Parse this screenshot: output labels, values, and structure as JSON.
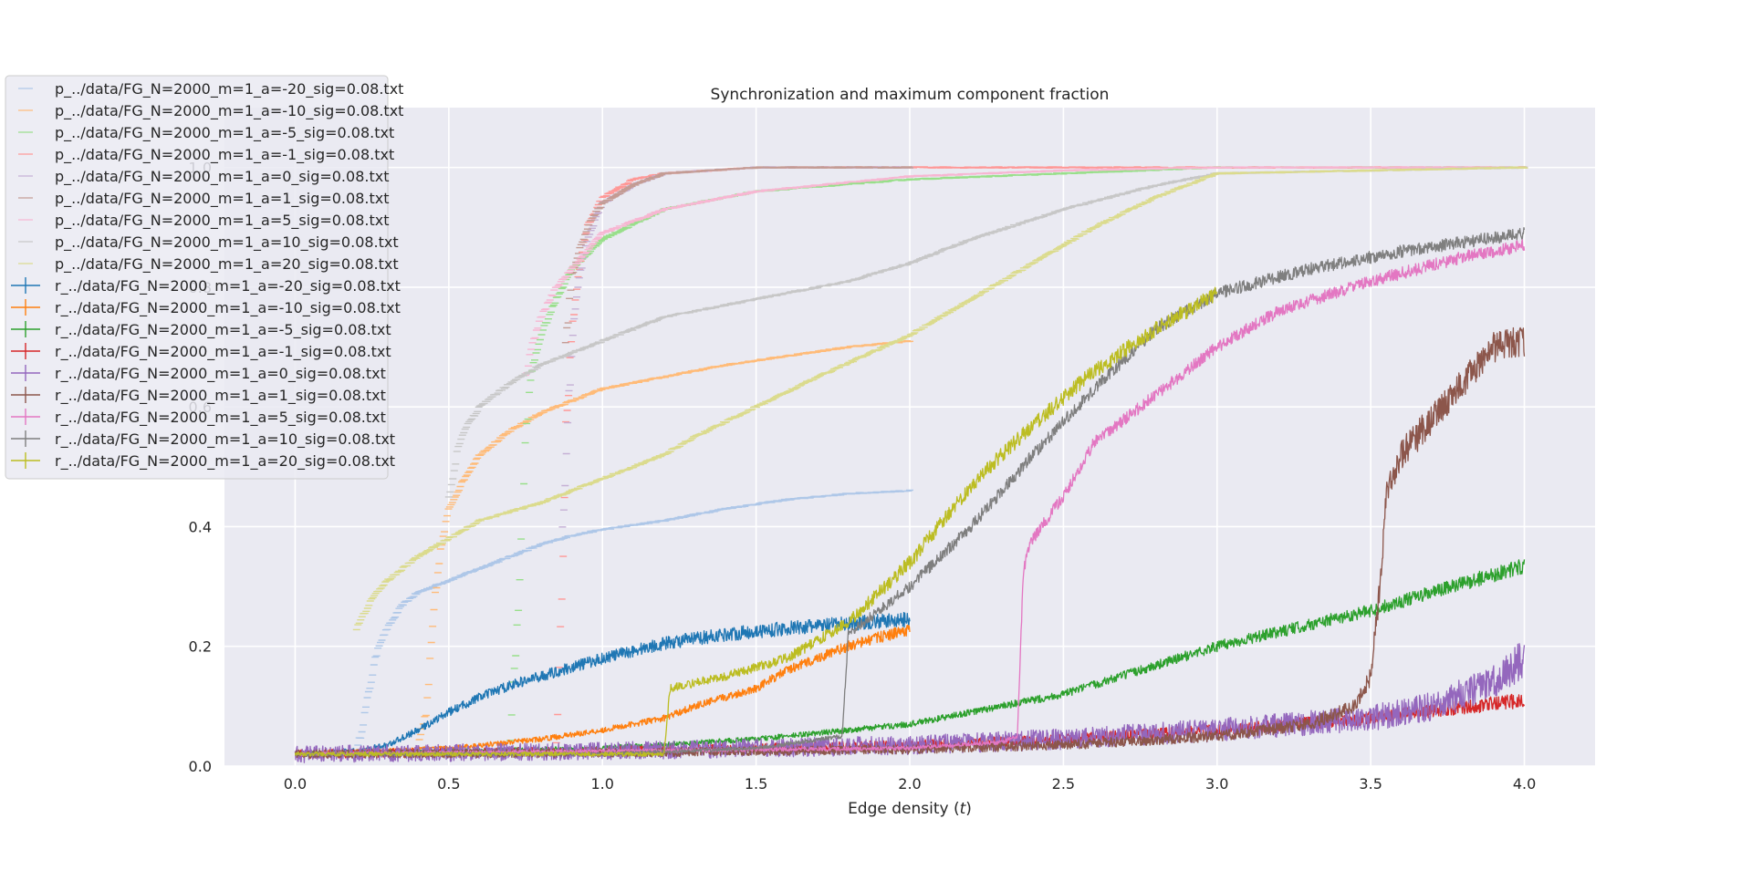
{
  "chart_data": {
    "type": "line",
    "title": "Synchronization and maximum component fraction",
    "xlabel_prefix": "Edge density (",
    "xlabel_var": "t",
    "xlabel_suffix": ")",
    "ylabel": "",
    "xlim": [
      -0.23,
      4.23
    ],
    "ylim": [
      0.0,
      1.1
    ],
    "xticks": [
      "0.0",
      "0.5",
      "1.0",
      "1.5",
      "2.0",
      "2.5",
      "3.0",
      "3.5",
      "4.0"
    ],
    "xtick_values": [
      0.0,
      0.5,
      1.0,
      1.5,
      2.0,
      2.5,
      3.0,
      3.5,
      4.0
    ],
    "yticks": [
      "0.0",
      "0.2",
      "0.4",
      "0.6",
      "0.8",
      "1.0"
    ],
    "ytick_values": [
      0.0,
      0.2,
      0.4,
      0.6,
      0.8,
      1.0
    ],
    "grid": true,
    "legend_position": "upper-left",
    "series": [
      {
        "name": "p_../data/FG_N=2000_m=1_a=-20_sig=0.08.txt",
        "color": "#aec7e8",
        "style": "marker",
        "x": [
          0.2,
          0.22,
          0.25,
          0.27,
          0.3,
          0.35,
          0.4,
          0.5,
          0.6,
          0.7,
          0.8,
          0.9,
          1.0,
          1.2,
          1.4,
          1.6,
          1.8,
          2.0
        ],
        "y": [
          0.02,
          0.07,
          0.15,
          0.2,
          0.23,
          0.27,
          0.29,
          0.31,
          0.33,
          0.35,
          0.37,
          0.385,
          0.395,
          0.41,
          0.43,
          0.445,
          0.455,
          0.46
        ]
      },
      {
        "name": "p_../data/FG_N=2000_m=1_a=-10_sig=0.08.txt",
        "color": "#ffbb78",
        "style": "marker",
        "x": [
          0.4,
          0.43,
          0.45,
          0.47,
          0.5,
          0.55,
          0.6,
          0.7,
          0.8,
          0.9,
          1.0,
          1.2,
          1.4,
          1.6,
          1.8,
          2.0
        ],
        "y": [
          0.03,
          0.1,
          0.25,
          0.35,
          0.43,
          0.48,
          0.52,
          0.56,
          0.59,
          0.61,
          0.63,
          0.65,
          0.67,
          0.685,
          0.7,
          0.71
        ]
      },
      {
        "name": "p_../data/FG_N=2000_m=1_a=-5_sig=0.08.txt",
        "color": "#98df8a",
        "style": "marker",
        "x": [
          0.7,
          0.73,
          0.75,
          0.77,
          0.8,
          0.85,
          0.9,
          1.0,
          1.2,
          1.5,
          2.0,
          2.5,
          3.0,
          4.0
        ],
        "y": [
          0.05,
          0.3,
          0.55,
          0.66,
          0.72,
          0.78,
          0.83,
          0.88,
          0.93,
          0.96,
          0.98,
          0.99,
          1.0,
          1.0
        ]
      },
      {
        "name": "p_../data/FG_N=2000_m=1_a=-1_sig=0.08.txt",
        "color": "#ff9896",
        "style": "marker",
        "x": [
          0.85,
          0.87,
          0.88,
          0.9,
          0.92,
          0.95,
          1.0,
          1.1,
          1.2,
          1.5,
          2.0,
          3.0,
          4.0
        ],
        "y": [
          0.05,
          0.3,
          0.55,
          0.72,
          0.82,
          0.9,
          0.95,
          0.98,
          0.99,
          1.0,
          1.0,
          1.0,
          1.0
        ]
      },
      {
        "name": "p_../data/FG_N=2000_m=1_a=0_sig=0.08.txt",
        "color": "#c5b0d5",
        "style": "marker",
        "x": [
          0.87,
          0.9,
          0.92,
          0.95,
          1.0,
          1.1,
          1.2,
          1.5,
          2.0
        ],
        "y": [
          0.4,
          0.7,
          0.8,
          0.88,
          0.94,
          0.97,
          0.99,
          1.0,
          1.0
        ]
      },
      {
        "name": "p_../data/FG_N=2000_m=1_a=1_sig=0.08.txt",
        "color": "#c49c94",
        "style": "marker",
        "x": [
          0.88,
          0.9,
          0.93,
          0.96,
          1.0,
          1.1,
          1.2,
          1.5,
          2.0
        ],
        "y": [
          0.7,
          0.82,
          0.87,
          0.91,
          0.94,
          0.97,
          0.99,
          1.0,
          1.0
        ]
      },
      {
        "name": "p_../data/FG_N=2000_m=1_a=5_sig=0.08.txt",
        "color": "#f7b6d2",
        "style": "marker",
        "x": [
          0.75,
          0.77,
          0.8,
          0.85,
          0.9,
          0.95,
          1.0,
          1.2,
          1.5,
          2.0,
          2.5,
          3.0,
          3.5,
          4.0
        ],
        "y": [
          0.65,
          0.7,
          0.75,
          0.8,
          0.83,
          0.86,
          0.89,
          0.93,
          0.96,
          0.985,
          0.995,
          1.0,
          1.0,
          1.0
        ]
      },
      {
        "name": "p_../data/FG_N=2000_m=1_a=10_sig=0.08.txt",
        "color": "#c7c7c7",
        "style": "marker",
        "x": [
          0.5,
          0.53,
          0.55,
          0.6,
          0.7,
          0.8,
          1.0,
          1.2,
          1.5,
          1.8,
          2.0,
          2.2,
          2.5,
          2.8,
          3.0,
          4.0
        ],
        "y": [
          0.45,
          0.53,
          0.56,
          0.6,
          0.64,
          0.67,
          0.71,
          0.75,
          0.78,
          0.81,
          0.84,
          0.88,
          0.93,
          0.97,
          0.99,
          1.0
        ]
      },
      {
        "name": "p_../data/FG_N=2000_m=1_a=20_sig=0.08.txt",
        "color": "#dbdb8d",
        "style": "marker",
        "x": [
          0.2,
          0.25,
          0.3,
          0.4,
          0.5,
          0.6,
          0.8,
          1.0,
          1.2,
          1.3,
          1.5,
          1.7,
          2.0,
          2.2,
          2.4,
          2.6,
          2.8,
          3.0,
          4.0
        ],
        "y": [
          0.23,
          0.28,
          0.31,
          0.35,
          0.38,
          0.41,
          0.44,
          0.48,
          0.52,
          0.55,
          0.6,
          0.65,
          0.72,
          0.78,
          0.84,
          0.9,
          0.95,
          0.99,
          1.0
        ]
      },
      {
        "name": "r_../data/FG_N=2000_m=1_a=-20_sig=0.08.txt",
        "color": "#1f77b4",
        "style": "line",
        "noise": 0.012,
        "x": [
          0.0,
          0.2,
          0.3,
          0.4,
          0.5,
          0.6,
          0.7,
          0.8,
          0.9,
          1.0,
          1.2,
          1.4,
          1.6,
          1.8,
          2.0
        ],
        "y": [
          0.02,
          0.025,
          0.035,
          0.06,
          0.09,
          0.115,
          0.135,
          0.15,
          0.165,
          0.18,
          0.205,
          0.22,
          0.23,
          0.238,
          0.245
        ]
      },
      {
        "name": "r_../data/FG_N=2000_m=1_a=-10_sig=0.08.txt",
        "color": "#ff7f0e",
        "style": "line",
        "noise": 0.01,
        "x": [
          0.0,
          0.5,
          0.8,
          1.0,
          1.2,
          1.3,
          1.4,
          1.5,
          1.6,
          1.7,
          1.8,
          1.9,
          2.0
        ],
        "y": [
          0.02,
          0.03,
          0.045,
          0.06,
          0.08,
          0.1,
          0.115,
          0.13,
          0.16,
          0.18,
          0.2,
          0.215,
          0.228
        ]
      },
      {
        "name": "r_../data/FG_N=2000_m=1_a=-5_sig=0.08.txt",
        "color": "#2ca02c",
        "style": "line",
        "noise": 0.01,
        "x": [
          0.0,
          1.0,
          1.5,
          2.0,
          2.5,
          3.0,
          3.5,
          4.0
        ],
        "y": [
          0.02,
          0.03,
          0.045,
          0.07,
          0.12,
          0.2,
          0.26,
          0.335
        ]
      },
      {
        "name": "r_../data/FG_N=2000_m=1_a=-1_sig=0.08.txt",
        "color": "#d62728",
        "style": "line",
        "noise": 0.02,
        "x": [
          0.0,
          1.0,
          2.0,
          2.5,
          3.0,
          3.5,
          4.0
        ],
        "y": [
          0.02,
          0.025,
          0.035,
          0.045,
          0.06,
          0.08,
          0.11
        ]
      },
      {
        "name": "r_../data/FG_N=2000_m=1_a=0_sig=0.08.txt",
        "color": "#9467bd",
        "style": "line",
        "noise": 0.04,
        "x": [
          0.0,
          1.0,
          2.0,
          2.5,
          3.0,
          3.5,
          3.7,
          3.9,
          4.0
        ],
        "y": [
          0.02,
          0.025,
          0.035,
          0.045,
          0.06,
          0.08,
          0.1,
          0.14,
          0.18
        ]
      },
      {
        "name": "r_../data/FG_N=2000_m=1_a=1_sig=0.08.txt",
        "color": "#8c564b",
        "style": "line",
        "noise": 0.02,
        "x": [
          0.0,
          1.0,
          2.0,
          2.5,
          3.0,
          3.3,
          3.45,
          3.5,
          3.53,
          3.55,
          3.6,
          3.7,
          3.8,
          3.9,
          4.0
        ],
        "y": [
          0.02,
          0.022,
          0.028,
          0.035,
          0.05,
          0.07,
          0.1,
          0.15,
          0.3,
          0.45,
          0.52,
          0.58,
          0.64,
          0.7,
          0.71
        ]
      },
      {
        "name": "r_../data/FG_N=2000_m=1_a=5_sig=0.08.txt",
        "color": "#e377c2",
        "style": "line",
        "noise": 0.008,
        "x": [
          0.0,
          1.0,
          2.0,
          2.3,
          2.35,
          2.37,
          2.4,
          2.5,
          2.6,
          2.8,
          3.0,
          3.2,
          3.5,
          3.8,
          4.0
        ],
        "y": [
          0.02,
          0.025,
          0.03,
          0.04,
          0.05,
          0.33,
          0.38,
          0.45,
          0.54,
          0.62,
          0.7,
          0.76,
          0.81,
          0.85,
          0.87
        ]
      },
      {
        "name": "r_../data/FG_N=2000_m=1_a=10_sig=0.08.txt",
        "color": "#7f7f7f",
        "style": "line",
        "noise": 0.008,
        "x": [
          0.0,
          1.0,
          1.5,
          1.78,
          1.8,
          2.0,
          2.2,
          2.4,
          2.6,
          2.8,
          3.0,
          3.3,
          3.6,
          4.0
        ],
        "y": [
          0.02,
          0.02,
          0.03,
          0.05,
          0.22,
          0.3,
          0.4,
          0.52,
          0.63,
          0.73,
          0.79,
          0.83,
          0.86,
          0.89
        ]
      },
      {
        "name": "r_../data/FG_N=2000_m=1_a=20_sig=0.08.txt",
        "color": "#bcbd22",
        "style": "line",
        "noise": 0.01,
        "x": [
          0.0,
          1.2,
          1.22,
          1.4,
          1.6,
          1.8,
          2.0,
          2.2,
          2.4,
          2.6,
          2.8,
          3.0
        ],
        "y": [
          0.02,
          0.02,
          0.13,
          0.15,
          0.18,
          0.24,
          0.34,
          0.47,
          0.57,
          0.66,
          0.73,
          0.79
        ]
      }
    ]
  }
}
